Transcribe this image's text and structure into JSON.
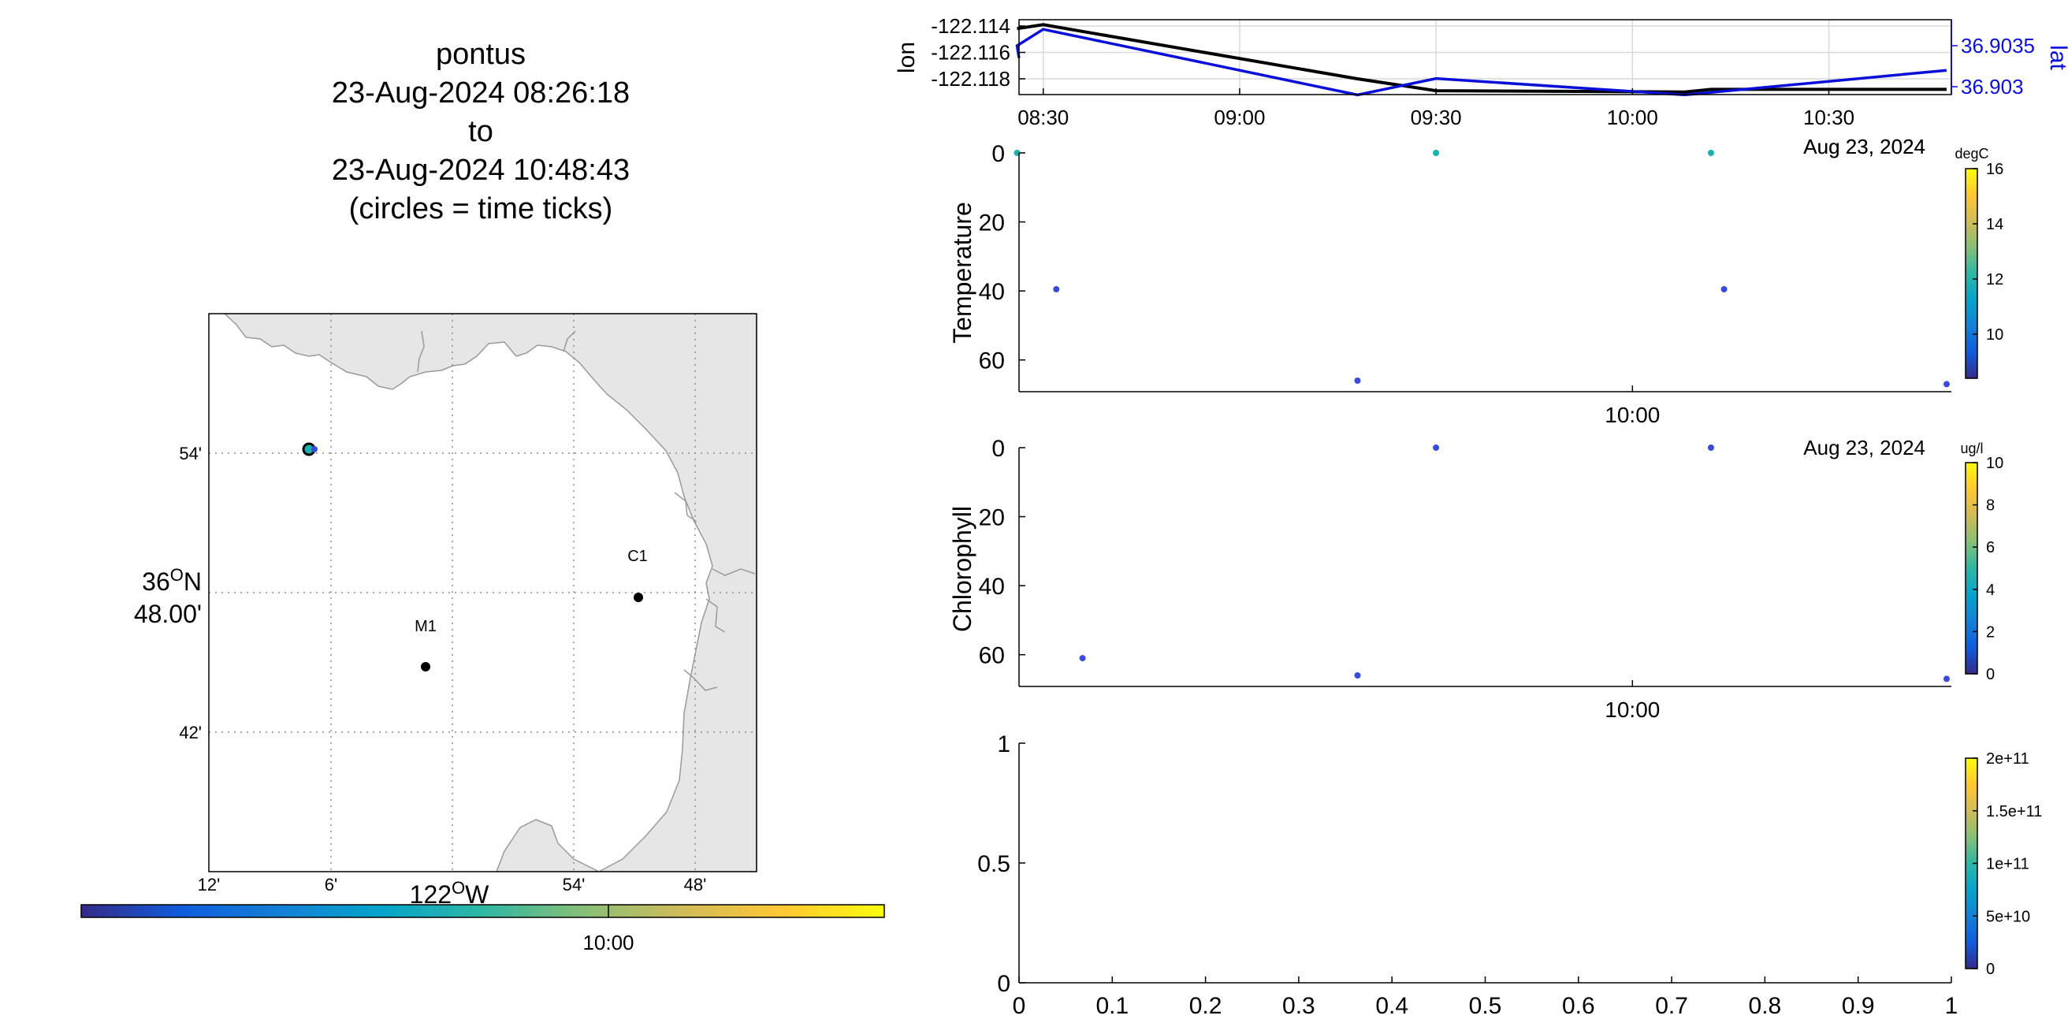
{
  "title": {
    "platform": "pontus",
    "start": "23-Aug-2024 08:26:18",
    "joiner": "to",
    "end": "23-Aug-2024 10:48:43",
    "note": "(circles = time ticks)"
  },
  "map": {
    "lon_ticks": [
      "12'",
      "6'",
      "0",
      "54'",
      "48'"
    ],
    "lon_axis_label": "122",
    "lon_axis_suffix": "W",
    "degree_symbol": "O",
    "lat_ticks": [
      "54'",
      "42'"
    ],
    "lat_center_deg": "36",
    "lat_center_suffix": "N",
    "lat_center_min": "48.00'",
    "stations": [
      {
        "name": "C1",
        "lon": -121.847,
        "lat": 36.797
      },
      {
        "name": "M1",
        "lon": -122.022,
        "lat": 36.747
      }
    ],
    "track_position": {
      "lon": -122.116,
      "lat": 36.903
    },
    "time_colorbar_tick": "10:00"
  },
  "colors": {
    "track_lon": "#000000",
    "track_lat": "#0b10d8",
    "land": "#e6e6e6",
    "station": "#000000",
    "teal_point": "#19b2ac",
    "blue_point": "#3c4ad9",
    "parula": [
      "#352a87",
      "#0f5cdd",
      "#1481d6",
      "#06a4ca",
      "#2eb7a4",
      "#87bf77",
      "#d1bb59",
      "#fec832",
      "#f9fb0e"
    ]
  },
  "chart_data": [
    {
      "type": "line",
      "xlabel": "",
      "ylabel": "lon",
      "ylabel_right": "lat",
      "x_ticks": [
        "08:30",
        "09:00",
        "09:30",
        "10:00",
        "10:30"
      ],
      "x_suffix": "Aug 23, 2024",
      "y_ticks": [
        "-122.114",
        "-122.116",
        "-122.118"
      ],
      "y2_ticks": [
        "36.9035",
        "36.903"
      ],
      "grid": true,
      "series": [
        {
          "name": "lon",
          "axis": "left",
          "x": [
            "08:26",
            "08:30",
            "09:18",
            "09:30",
            "10:08",
            "10:12",
            "10:48"
          ],
          "values": [
            -122.1142,
            -122.1139,
            -122.118,
            -122.1189,
            -122.119,
            -122.1188,
            -122.1188
          ]
        },
        {
          "name": "lat",
          "axis": "right",
          "x": [
            "08:26",
            "08:30",
            "09:18",
            "09:30",
            "10:08",
            "10:48"
          ],
          "values": [
            36.9035,
            36.9037,
            36.9029,
            36.9031,
            36.9029,
            36.9032
          ]
        }
      ]
    },
    {
      "type": "scatter",
      "ylabel": "Temperature",
      "x_ticks": [
        "10:00"
      ],
      "x_date": "Aug 23, 2024",
      "y_ticks": [
        "0",
        "20",
        "40",
        "60"
      ],
      "ylim": [
        0,
        70
      ],
      "colorbar_unit": "degC",
      "colorbar_ticks": [
        "16",
        "14",
        "12",
        "10"
      ],
      "colorbar_range": [
        8.4,
        16
      ],
      "points": [
        {
          "t": "08:26",
          "depth": 0,
          "value": 13.0
        },
        {
          "t": "08:32",
          "depth": 39.5,
          "value": 9.0
        },
        {
          "t": "09:18",
          "depth": 66,
          "value": 9.0
        },
        {
          "t": "09:30",
          "depth": 0,
          "value": 13.0
        },
        {
          "t": "10:12",
          "depth": 0,
          "value": 13.0
        },
        {
          "t": "10:14",
          "depth": 39.5,
          "value": 9.0
        },
        {
          "t": "10:48",
          "depth": 67,
          "value": 9.0
        }
      ]
    },
    {
      "type": "scatter",
      "ylabel": "Chlorophyll",
      "x_ticks": [
        "10:00"
      ],
      "x_date": "Aug 23, 2024",
      "y_ticks": [
        "0",
        "20",
        "40",
        "60"
      ],
      "ylim": [
        0,
        70
      ],
      "colorbar_unit": "ug/l",
      "colorbar_ticks": [
        "10",
        "8",
        "6",
        "4",
        "2",
        "0"
      ],
      "colorbar_range": [
        0,
        10
      ],
      "points": [
        {
          "t": "08:36",
          "depth": 61,
          "value": 0.5
        },
        {
          "t": "09:18",
          "depth": 66,
          "value": 0.5
        },
        {
          "t": "09:30",
          "depth": 0,
          "value": 0.5
        },
        {
          "t": "10:12",
          "depth": 0,
          "value": 0.5
        },
        {
          "t": "10:48",
          "depth": 67,
          "value": 0.5
        }
      ]
    },
    {
      "type": "scatter",
      "ylabel": "",
      "x_ticks": [
        "0",
        "0.1",
        "0.2",
        "0.3",
        "0.4",
        "0.5",
        "0.6",
        "0.7",
        "0.8",
        "0.9",
        "1"
      ],
      "y_ticks": [
        "1",
        "0.5",
        "0"
      ],
      "xlim": [
        0,
        1
      ],
      "ylim": [
        0,
        1
      ],
      "colorbar_ticks": [
        "2e+11",
        "1.5e+11",
        "1e+11",
        "5e+10",
        "0"
      ],
      "colorbar_range": [
        0,
        200000000000
      ],
      "points": []
    }
  ]
}
